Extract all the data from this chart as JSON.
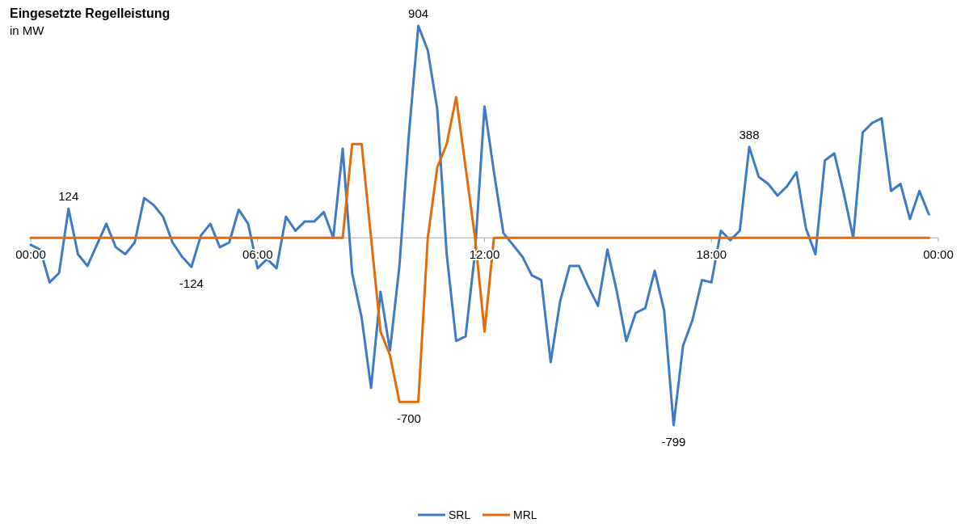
{
  "chart_data": {
    "type": "line",
    "title": "Eingesetzte Regelleistung",
    "subtitle": "in MW",
    "x": [
      0,
      0.25,
      0.5,
      0.75,
      1,
      1.25,
      1.5,
      1.75,
      2,
      2.25,
      2.5,
      2.75,
      3,
      3.25,
      3.5,
      3.75,
      4,
      4.25,
      4.5,
      4.75,
      5,
      5.25,
      5.5,
      5.75,
      6,
      6.25,
      6.5,
      6.75,
      7,
      7.25,
      7.5,
      7.75,
      8,
      8.25,
      8.5,
      8.75,
      9,
      9.25,
      9.5,
      9.75,
      10,
      10.25,
      10.5,
      10.75,
      11,
      11.25,
      11.5,
      11.75,
      12,
      12.25,
      12.5,
      12.75,
      13,
      13.25,
      13.5,
      13.75,
      14,
      14.25,
      14.5,
      14.75,
      15,
      15.25,
      15.5,
      15.75,
      16,
      16.25,
      16.5,
      16.75,
      17,
      17.25,
      17.5,
      17.75,
      18,
      18.25,
      18.5,
      18.75,
      19,
      19.25,
      19.5,
      19.75,
      20,
      20.25,
      20.5,
      20.75,
      21,
      21.25,
      21.5,
      21.75,
      22,
      22.25,
      22.5,
      22.75,
      23,
      23.25,
      23.5,
      23.75
    ],
    "series": [
      {
        "name": "SRL",
        "color": "#3d7cc4",
        "values": [
          -30,
          -50,
          -190,
          -150,
          124,
          -70,
          -120,
          -30,
          60,
          -40,
          -70,
          -20,
          170,
          140,
          90,
          -20,
          -80,
          -124,
          10,
          60,
          -40,
          -20,
          120,
          60,
          -130,
          -90,
          -130,
          90,
          30,
          70,
          70,
          110,
          0,
          380,
          -150,
          -340,
          -640,
          -230,
          -480,
          -120,
          440,
          904,
          800,
          550,
          -70,
          -440,
          -420,
          -60,
          560,
          280,
          20,
          -30,
          -80,
          -160,
          -180,
          -530,
          -270,
          -120,
          -120,
          -210,
          -290,
          -50,
          -230,
          -440,
          -320,
          -300,
          -140,
          -310,
          -799,
          -460,
          -350,
          -180,
          -190,
          30,
          -10,
          30,
          388,
          260,
          230,
          180,
          220,
          280,
          40,
          -70,
          330,
          360,
          190,
          0,
          450,
          490,
          510,
          200,
          230,
          80,
          200,
          100
        ],
        "value_labels": [
          null,
          null,
          null,
          null,
          "124",
          null,
          null,
          null,
          null,
          null,
          null,
          null,
          null,
          null,
          null,
          null,
          null,
          "-124",
          null,
          null,
          null,
          null,
          null,
          null,
          null,
          null,
          null,
          null,
          null,
          null,
          null,
          null,
          null,
          null,
          null,
          null,
          null,
          null,
          null,
          null,
          null,
          "904",
          null,
          null,
          null,
          null,
          null,
          null,
          null,
          null,
          null,
          null,
          null,
          null,
          null,
          null,
          null,
          null,
          null,
          null,
          null,
          null,
          null,
          null,
          null,
          null,
          null,
          null,
          "-799",
          null,
          null,
          null,
          null,
          null,
          null,
          null,
          "388",
          null,
          null,
          null,
          null,
          null,
          null,
          null,
          null,
          null,
          null,
          null,
          null,
          null,
          null,
          null,
          null,
          null,
          null,
          null
        ]
      },
      {
        "name": "MRL",
        "color": "#e36c0a",
        "values": [
          0,
          0,
          0,
          0,
          0,
          0,
          0,
          0,
          0,
          0,
          0,
          0,
          0,
          0,
          0,
          0,
          0,
          0,
          0,
          0,
          0,
          0,
          0,
          0,
          0,
          0,
          0,
          0,
          0,
          0,
          0,
          0,
          0,
          0,
          400,
          400,
          0,
          -400,
          -500,
          -700,
          -700,
          -700,
          0,
          300,
          400,
          600,
          300,
          0,
          -400,
          0,
          0,
          0,
          0,
          0,
          0,
          0,
          0,
          0,
          0,
          0,
          0,
          0,
          0,
          0,
          0,
          0,
          0,
          0,
          0,
          0,
          0,
          0,
          0,
          0,
          0,
          0,
          0,
          0,
          0,
          0,
          0,
          0,
          0,
          0,
          0,
          0,
          0,
          0,
          0,
          0,
          0,
          0,
          0,
          0,
          0,
          0
        ],
        "value_labels": [
          null,
          null,
          null,
          null,
          null,
          null,
          null,
          null,
          null,
          null,
          null,
          null,
          null,
          null,
          null,
          null,
          null,
          null,
          null,
          null,
          null,
          null,
          null,
          null,
          null,
          null,
          null,
          null,
          null,
          null,
          null,
          null,
          null,
          null,
          null,
          null,
          null,
          null,
          null,
          null,
          "-700",
          null,
          null,
          null,
          null,
          null,
          null,
          null,
          null,
          null,
          null,
          null,
          null,
          null,
          null,
          null,
          null,
          null,
          null,
          null,
          null,
          null,
          null,
          null,
          null,
          null,
          null,
          null,
          null,
          null,
          null,
          null,
          null,
          null,
          null,
          null,
          null,
          null,
          null,
          null,
          null,
          null,
          null,
          null,
          null,
          null,
          null,
          null,
          null,
          null,
          null,
          null,
          null,
          null,
          null,
          null
        ]
      }
    ],
    "xlim": [
      0,
      24
    ],
    "xticks": [
      {
        "value": 0,
        "label": "00:00"
      },
      {
        "value": 6,
        "label": "06:00"
      },
      {
        "value": 12,
        "label": "12:00"
      },
      {
        "value": 18,
        "label": "18:00"
      },
      {
        "value": 24,
        "label": "00:00"
      }
    ],
    "tick_labels": "x",
    "legend": "bottom"
  }
}
